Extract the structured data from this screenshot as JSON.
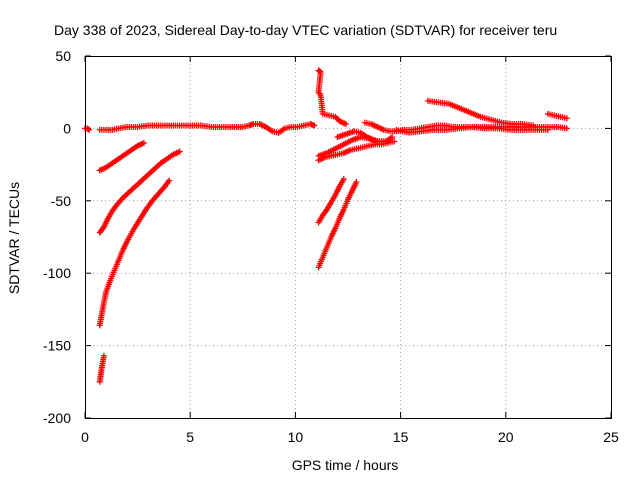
{
  "chart_data": {
    "type": "scatter",
    "title": "Day 338 of 2023, Sidereal Day-to-day VTEC variation (SDTVAR) for receiver teru",
    "xlabel": "GPS time / hours",
    "ylabel": "SDTVAR / TECUs",
    "xlim": [
      0,
      25
    ],
    "ylim": [
      -200,
      50
    ],
    "xticks": [
      "0",
      "5",
      "10",
      "15",
      "20",
      "25"
    ],
    "yticks": [
      "50",
      "0",
      "-50",
      "-100",
      "-150",
      "-200"
    ],
    "grid": true,
    "marker": "plus",
    "color": "#ff0000",
    "series": [
      {
        "points": [
          [
            0.0,
            0
          ],
          [
            0.1,
            0
          ],
          [
            0.2,
            -1
          ]
        ]
      },
      {
        "points": [
          [
            0.7,
            -1
          ],
          [
            1.0,
            -1
          ],
          [
            1.3,
            -1
          ],
          [
            1.6,
            0
          ],
          [
            2.0,
            1
          ],
          [
            2.5,
            1
          ],
          [
            3.0,
            2
          ],
          [
            3.5,
            2
          ],
          [
            4.0,
            2
          ],
          [
            4.5,
            2
          ],
          [
            5.0,
            2
          ],
          [
            5.5,
            2
          ],
          [
            6.0,
            1
          ],
          [
            6.5,
            1
          ],
          [
            7.0,
            1
          ],
          [
            7.5,
            1
          ],
          [
            7.8,
            2
          ],
          [
            8.0,
            3
          ],
          [
            8.3,
            3
          ],
          [
            8.6,
            1
          ],
          [
            8.9,
            -2
          ],
          [
            9.2,
            -3
          ],
          [
            9.5,
            0
          ],
          [
            9.8,
            1
          ],
          [
            10.1,
            1
          ],
          [
            10.4,
            2
          ],
          [
            10.7,
            3
          ],
          [
            10.9,
            2
          ]
        ]
      },
      {
        "points": [
          [
            0.7,
            -29
          ],
          [
            1.0,
            -27
          ],
          [
            1.3,
            -24
          ],
          [
            1.6,
            -21
          ],
          [
            1.9,
            -18
          ],
          [
            2.2,
            -15
          ],
          [
            2.5,
            -12
          ],
          [
            2.8,
            -10
          ]
        ]
      },
      {
        "points": [
          [
            0.7,
            -72
          ],
          [
            0.9,
            -68
          ],
          [
            1.1,
            -62
          ],
          [
            1.3,
            -57
          ],
          [
            1.5,
            -53
          ],
          [
            1.8,
            -48
          ],
          [
            2.1,
            -44
          ],
          [
            2.4,
            -40
          ],
          [
            2.7,
            -36
          ],
          [
            3.0,
            -32
          ],
          [
            3.3,
            -28
          ],
          [
            3.6,
            -24
          ],
          [
            3.9,
            -21
          ],
          [
            4.2,
            -18
          ],
          [
            4.5,
            -16
          ]
        ]
      },
      {
        "points": [
          [
            0.7,
            -136
          ],
          [
            0.8,
            -128
          ],
          [
            0.9,
            -120
          ],
          [
            1.0,
            -113
          ],
          [
            1.2,
            -105
          ],
          [
            1.4,
            -98
          ],
          [
            1.6,
            -91
          ],
          [
            1.8,
            -84
          ],
          [
            2.0,
            -78
          ],
          [
            2.3,
            -70
          ],
          [
            2.6,
            -63
          ],
          [
            2.9,
            -56
          ],
          [
            3.2,
            -50
          ],
          [
            3.5,
            -45
          ],
          [
            3.8,
            -40
          ],
          [
            4.0,
            -36
          ]
        ]
      },
      {
        "points": [
          [
            0.7,
            -175
          ],
          [
            0.75,
            -170
          ],
          [
            0.8,
            -165
          ],
          [
            0.85,
            -161
          ],
          [
            0.9,
            -157
          ]
        ]
      },
      {
        "points": [
          [
            11.1,
            40
          ],
          [
            11.2,
            39
          ],
          [
            11.1,
            25
          ],
          [
            11.2,
            23
          ],
          [
            11.3,
            10
          ],
          [
            11.6,
            9
          ],
          [
            11.9,
            8
          ],
          [
            12.1,
            5
          ],
          [
            12.4,
            3
          ]
        ]
      },
      {
        "points": [
          [
            12.0,
            -6
          ],
          [
            12.4,
            -4
          ],
          [
            12.8,
            -2
          ],
          [
            13.1,
            -3
          ],
          [
            13.4,
            -6
          ],
          [
            13.7,
            -8
          ],
          [
            14.0,
            -9
          ],
          [
            14.4,
            -9
          ]
        ]
      },
      {
        "points": [
          [
            11.1,
            -22
          ],
          [
            11.4,
            -20
          ],
          [
            11.7,
            -19
          ],
          [
            12.0,
            -18
          ],
          [
            12.3,
            -17
          ],
          [
            12.6,
            -15
          ],
          [
            12.9,
            -14
          ],
          [
            13.2,
            -13
          ],
          [
            13.5,
            -12
          ],
          [
            13.8,
            -11
          ],
          [
            14.1,
            -11
          ],
          [
            14.4,
            -10
          ],
          [
            14.7,
            -9
          ]
        ]
      },
      {
        "points": [
          [
            11.1,
            -19
          ],
          [
            11.5,
            -17
          ],
          [
            11.9,
            -14
          ],
          [
            12.3,
            -11
          ],
          [
            12.7,
            -8
          ],
          [
            13.1,
            -6
          ],
          [
            13.5,
            -7
          ],
          [
            13.9,
            -9
          ],
          [
            14.3,
            -9
          ],
          [
            14.6,
            -6
          ]
        ]
      },
      {
        "points": [
          [
            13.3,
            4
          ],
          [
            13.6,
            3
          ],
          [
            13.9,
            1
          ],
          [
            14.2,
            -1
          ],
          [
            14.5,
            -2
          ],
          [
            14.8,
            -2
          ],
          [
            15.1,
            -1
          ],
          [
            15.5,
            -1
          ],
          [
            15.9,
            0
          ],
          [
            16.3,
            1
          ],
          [
            16.7,
            2
          ],
          [
            17.1,
            2
          ],
          [
            17.5,
            1
          ],
          [
            18.0,
            1
          ],
          [
            18.5,
            1
          ],
          [
            19.0,
            1
          ],
          [
            19.5,
            1
          ],
          [
            20.0,
            1
          ],
          [
            20.5,
            1
          ],
          [
            21.0,
            1
          ],
          [
            21.5,
            1
          ],
          [
            22.0,
            1
          ],
          [
            22.5,
            1
          ],
          [
            22.9,
            0
          ]
        ]
      },
      {
        "points": [
          [
            14.8,
            -1
          ],
          [
            15.4,
            -3
          ],
          [
            16.0,
            -2
          ],
          [
            16.6,
            -1
          ],
          [
            17.2,
            -1
          ],
          [
            17.8,
            0
          ],
          [
            18.4,
            1
          ],
          [
            19.0,
            0
          ],
          [
            19.6,
            0
          ],
          [
            20.2,
            -1
          ],
          [
            20.8,
            -1
          ],
          [
            21.4,
            -1
          ],
          [
            22.0,
            -1
          ]
        ]
      },
      {
        "points": [
          [
            16.3,
            19
          ],
          [
            16.8,
            18
          ],
          [
            17.3,
            17
          ],
          [
            17.8,
            14
          ],
          [
            18.3,
            11
          ],
          [
            18.8,
            8
          ],
          [
            19.3,
            6
          ],
          [
            19.8,
            4
          ],
          [
            20.3,
            3
          ],
          [
            20.8,
            3
          ],
          [
            21.3,
            2
          ]
        ]
      },
      {
        "points": [
          [
            22.0,
            10
          ],
          [
            22.3,
            9
          ],
          [
            22.6,
            8
          ],
          [
            22.9,
            7
          ]
        ]
      },
      {
        "points": [
          [
            11.1,
            -65
          ],
          [
            11.3,
            -60
          ],
          [
            11.5,
            -56
          ],
          [
            11.7,
            -51
          ],
          [
            11.9,
            -46
          ],
          [
            12.1,
            -40
          ],
          [
            12.3,
            -35
          ]
        ]
      },
      {
        "points": [
          [
            11.1,
            -96
          ],
          [
            11.3,
            -89
          ],
          [
            11.5,
            -82
          ],
          [
            11.7,
            -75
          ],
          [
            11.9,
            -69
          ],
          [
            12.1,
            -62
          ],
          [
            12.3,
            -56
          ],
          [
            12.5,
            -49
          ],
          [
            12.7,
            -43
          ],
          [
            12.9,
            -37
          ]
        ]
      }
    ]
  }
}
